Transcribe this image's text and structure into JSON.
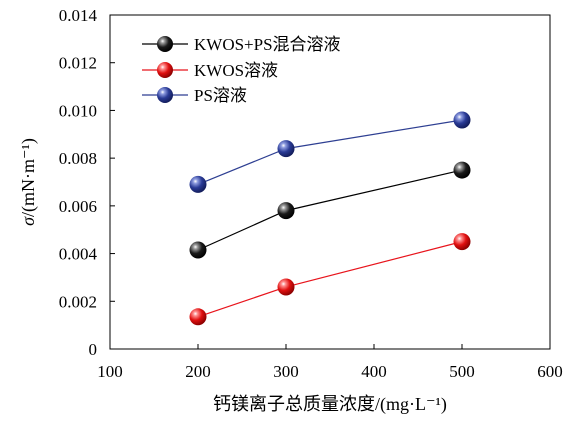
{
  "chart_data": {
    "type": "line",
    "x": [
      200,
      300,
      500
    ],
    "series": [
      {
        "name": "KWOS+PS混合溶液",
        "values": [
          0.00415,
          0.0058,
          0.0075
        ],
        "line_color": "#000000",
        "marker": "black-sphere"
      },
      {
        "name": "KWOS溶液",
        "values": [
          0.00135,
          0.0026,
          0.0045
        ],
        "line_color": "#e8141c",
        "marker": "red-sphere"
      },
      {
        "name": "PS溶液",
        "values": [
          0.0069,
          0.0084,
          0.0096
        ],
        "line_color": "#2e3f92",
        "marker": "blue-sphere"
      }
    ],
    "xlim": [
      100,
      600
    ],
    "ylim": [
      0,
      0.014
    ],
    "xticks": [
      "100",
      "200",
      "300",
      "400",
      "500",
      "600"
    ],
    "yticks": [
      "0",
      "0.002",
      "0.004",
      "0.006",
      "0.008",
      "0.010",
      "0.012",
      "0.014"
    ],
    "xlabel": "钙镁离子总质量浓度/(mg·L⁻¹)",
    "ylabel_symbol": "σ",
    "ylabel": "/(mN·m⁻¹)",
    "legend_position": "top-left",
    "grid": false
  }
}
